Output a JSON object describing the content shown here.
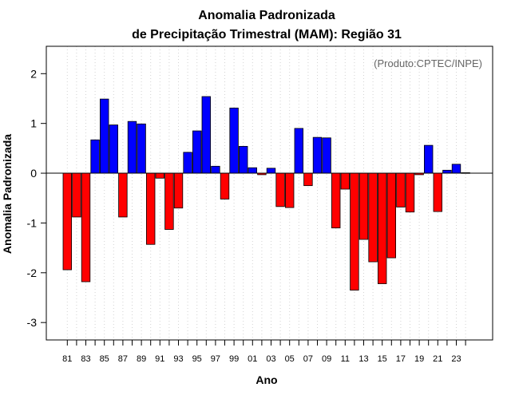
{
  "chart_data": {
    "type": "bar",
    "title_line1": "Anomalia Padronizada",
    "title_line2": "de Precipitação Trimestral (MAM): Região 31",
    "xlabel": "Ano",
    "ylabel": "Anomalia Padronizada",
    "credit": "(Produto:CPTEC/INPE)",
    "ylim": [
      -3.35,
      2.55
    ],
    "yticks": [
      -3,
      -2,
      -1,
      0,
      1,
      2
    ],
    "ytick_labels": [
      "-3",
      "-2",
      "-1",
      "0",
      "1",
      "2"
    ],
    "grid": true,
    "categories": [
      "81",
      "82",
      "83",
      "84",
      "85",
      "86",
      "87",
      "88",
      "89",
      "90",
      "91",
      "92",
      "93",
      "94",
      "95",
      "96",
      "97",
      "98",
      "99",
      "00",
      "01",
      "02",
      "03",
      "04",
      "05",
      "06",
      "07",
      "08",
      "09",
      "10",
      "11",
      "12",
      "13",
      "14",
      "15",
      "16",
      "17",
      "18",
      "19",
      "20",
      "21",
      "22",
      "23",
      "24"
    ],
    "xtick_labels": [
      "81",
      "83",
      "85",
      "87",
      "89",
      "91",
      "93",
      "95",
      "97",
      "99",
      "01",
      "03",
      "05",
      "07",
      "09",
      "11",
      "13",
      "15",
      "17",
      "19",
      "21",
      "23"
    ],
    "values": [
      -1.94,
      -0.88,
      -2.18,
      0.67,
      1.49,
      0.97,
      -0.88,
      1.04,
      0.99,
      -1.43,
      -0.1,
      -1.13,
      -0.7,
      0.42,
      0.85,
      1.54,
      0.14,
      -0.52,
      1.31,
      0.54,
      0.11,
      -0.03,
      0.1,
      -0.67,
      -0.69,
      0.9,
      -0.25,
      0.72,
      0.71,
      -1.1,
      -0.32,
      -2.35,
      -1.33,
      -1.78,
      -2.22,
      -1.7,
      -0.68,
      -0.78,
      -0.03,
      0.56,
      -0.77,
      0.06,
      0.18,
      0.01
    ],
    "colors": {
      "positive": "#0000FF",
      "negative": "#FF0000",
      "grid": "#D3D3D3",
      "frame": "#000000"
    }
  }
}
